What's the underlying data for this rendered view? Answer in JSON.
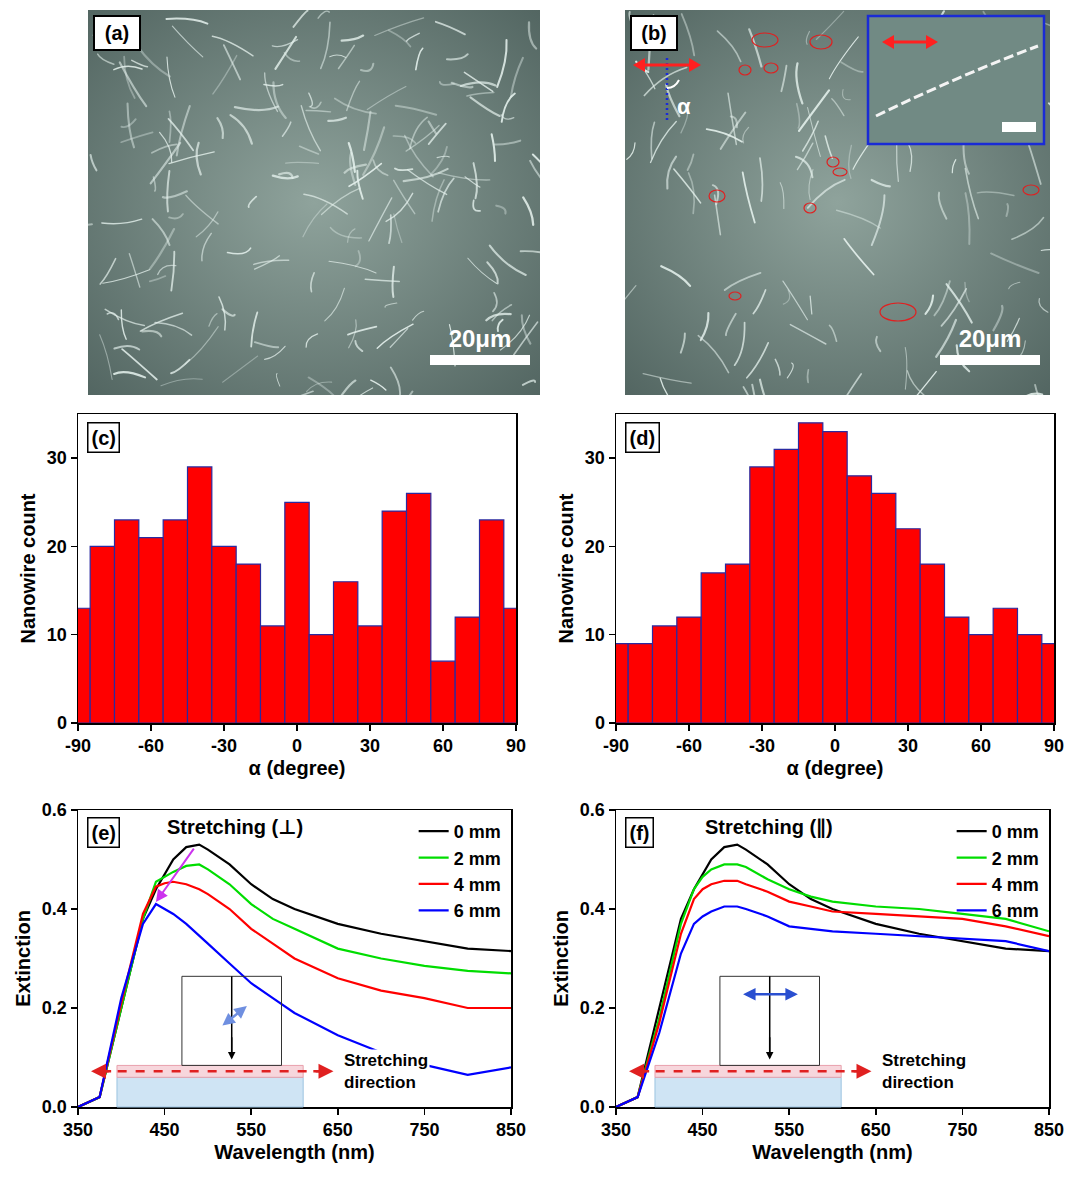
{
  "images": [
    {
      "label": "(a)",
      "scale_bar": "20μm"
    },
    {
      "label": "(b)",
      "scale_bar": "20μm",
      "angle_label": "α"
    }
  ],
  "chart_data": [
    {
      "type": "bar",
      "label": "(c)",
      "x": [
        -90,
        -80,
        -70,
        -60,
        -50,
        -40,
        -30,
        -20,
        -10,
        0,
        10,
        20,
        30,
        40,
        50,
        60,
        70,
        80,
        90
      ],
      "values": [
        13,
        20,
        23,
        21,
        23,
        29,
        20,
        18,
        11,
        25,
        10,
        16,
        11,
        24,
        26,
        7,
        12,
        23,
        13
      ],
      "color": "#ff0000",
      "xlim": [
        -90,
        90
      ],
      "xticks": [
        -90,
        -60,
        -30,
        0,
        30,
        60,
        90
      ],
      "ylim": [
        0,
        35
      ],
      "yticks": [
        0,
        10,
        20,
        30
      ],
      "x_label": "α (degree)",
      "y_label": "Nanowire count"
    },
    {
      "type": "bar",
      "label": "(d)",
      "x": [
        -90,
        -80,
        -70,
        -60,
        -50,
        -40,
        -30,
        -20,
        -10,
        0,
        10,
        20,
        30,
        40,
        50,
        60,
        70,
        80,
        90
      ],
      "values": [
        9,
        9,
        11,
        12,
        17,
        18,
        29,
        31,
        34,
        33,
        28,
        26,
        22,
        18,
        12,
        10,
        13,
        10,
        9
      ],
      "color": "#ff0000",
      "xlim": [
        -90,
        90
      ],
      "xticks": [
        -90,
        -60,
        -30,
        0,
        30,
        60,
        90
      ],
      "ylim": [
        0,
        35
      ],
      "yticks": [
        0,
        10,
        20,
        30
      ],
      "x_label": "α (degree)",
      "y_label": "Nanowire count"
    },
    {
      "type": "line",
      "label": "(e)",
      "title": "Stretching (⊥)",
      "x": [
        350,
        375,
        400,
        425,
        440,
        450,
        460,
        475,
        490,
        500,
        525,
        550,
        575,
        600,
        650,
        700,
        750,
        800,
        850
      ],
      "series": [
        {
          "name": "0 mm",
          "color": "#000000",
          "values": [
            0.0,
            0.02,
            0.2,
            0.38,
            0.44,
            0.47,
            0.5,
            0.525,
            0.53,
            0.52,
            0.49,
            0.45,
            0.42,
            0.4,
            0.37,
            0.35,
            0.335,
            0.32,
            0.315
          ]
        },
        {
          "name": "2 mm",
          "color": "#00dd00",
          "values": [
            0.0,
            0.02,
            0.2,
            0.38,
            0.455,
            0.465,
            0.475,
            0.487,
            0.49,
            0.48,
            0.45,
            0.41,
            0.38,
            0.36,
            0.32,
            0.3,
            0.285,
            0.275,
            0.27
          ]
        },
        {
          "name": "4 mm",
          "color": "#ff0000",
          "values": [
            0.0,
            0.02,
            0.21,
            0.39,
            0.445,
            0.452,
            0.455,
            0.45,
            0.44,
            0.43,
            0.4,
            0.36,
            0.33,
            0.3,
            0.26,
            0.235,
            0.22,
            0.2,
            0.2
          ]
        },
        {
          "name": "6 mm",
          "color": "#0000ff",
          "values": [
            0.0,
            0.02,
            0.22,
            0.37,
            0.41,
            0.4,
            0.39,
            0.37,
            0.345,
            0.33,
            0.29,
            0.25,
            0.22,
            0.19,
            0.145,
            0.11,
            0.085,
            0.065,
            0.08
          ]
        }
      ],
      "xlim": [
        350,
        850
      ],
      "xticks": [
        350,
        450,
        550,
        650,
        750,
        850
      ],
      "ylim": [
        0,
        0.6
      ],
      "yticks": [
        {
          "value": 0,
          "label": "0.0"
        },
        {
          "value": 0.2,
          "label": "0.2"
        },
        {
          "value": 0.4,
          "label": "0.4"
        },
        {
          "value": 0.6,
          "label": "0.6"
        }
      ],
      "x_label": "Wavelength (nm)",
      "y_label": "Extinction",
      "legend": "upper right",
      "annotation": "Stretching direction"
    },
    {
      "type": "line",
      "label": "(f)",
      "title": "Stretching (∥)",
      "x": [
        350,
        375,
        400,
        425,
        440,
        450,
        460,
        475,
        490,
        500,
        525,
        550,
        575,
        600,
        650,
        700,
        750,
        800,
        850
      ],
      "series": [
        {
          "name": "0 mm",
          "color": "#000000",
          "values": [
            0.0,
            0.02,
            0.2,
            0.38,
            0.44,
            0.47,
            0.5,
            0.525,
            0.53,
            0.52,
            0.49,
            0.45,
            0.42,
            0.4,
            0.37,
            0.35,
            0.335,
            0.32,
            0.315
          ]
        },
        {
          "name": "2 mm",
          "color": "#00dd00",
          "values": [
            0.0,
            0.02,
            0.18,
            0.37,
            0.44,
            0.465,
            0.48,
            0.49,
            0.49,
            0.485,
            0.46,
            0.44,
            0.425,
            0.415,
            0.405,
            0.4,
            0.39,
            0.38,
            0.355
          ]
        },
        {
          "name": "4 mm",
          "color": "#ff0000",
          "values": [
            0.0,
            0.02,
            0.17,
            0.35,
            0.42,
            0.44,
            0.45,
            0.457,
            0.457,
            0.45,
            0.435,
            0.415,
            0.405,
            0.395,
            0.39,
            0.385,
            0.38,
            0.365,
            0.345
          ]
        },
        {
          "name": "6 mm",
          "color": "#0000ff",
          "values": [
            0.0,
            0.02,
            0.15,
            0.31,
            0.37,
            0.385,
            0.395,
            0.405,
            0.405,
            0.4,
            0.385,
            0.365,
            0.36,
            0.355,
            0.35,
            0.345,
            0.34,
            0.335,
            0.315
          ]
        }
      ],
      "xlim": [
        350,
        850
      ],
      "xticks": [
        350,
        450,
        550,
        650,
        750,
        850
      ],
      "ylim": [
        0,
        0.6
      ],
      "yticks": [
        {
          "value": 0,
          "label": "0.0"
        },
        {
          "value": 0.2,
          "label": "0.2"
        },
        {
          "value": 0.4,
          "label": "0.4"
        },
        {
          "value": 0.6,
          "label": "0.6"
        }
      ],
      "x_label": "Wavelength (nm)",
      "y_label": "Extinction",
      "legend": "upper right",
      "annotation": "Stretching direction"
    }
  ]
}
